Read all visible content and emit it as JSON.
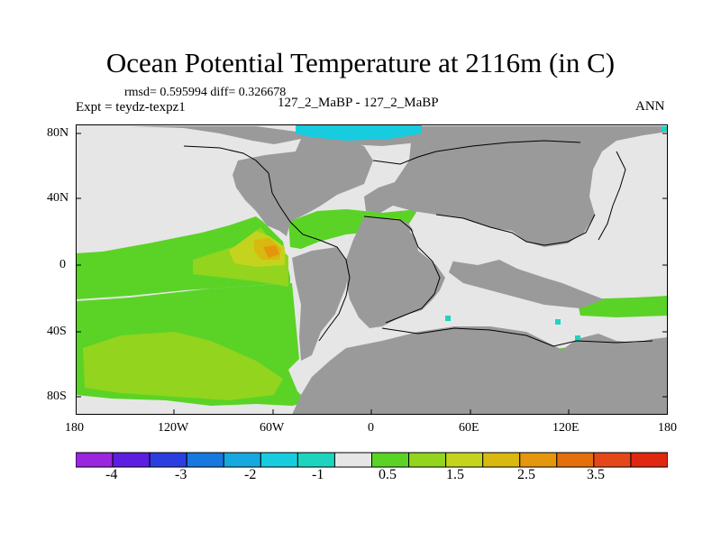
{
  "title": "Ocean Potential Temperature at 2116m (in C)",
  "stats": {
    "rmsd_line": "rmsd= 0.595994 diff= 0.326678",
    "expt_line": "Expt = teydz-texpz1",
    "run_line": "127_2_MaBP - 127_2_MaBP",
    "period": "ANN"
  },
  "axes": {
    "y_ticks": [
      "80N",
      "40N",
      "0",
      "40S",
      "80S"
    ],
    "x_ticks": [
      "180",
      "120W",
      "60W",
      "0",
      "60E",
      "120E",
      "180"
    ]
  },
  "legend": {
    "labels": [
      "-4",
      "-3",
      "-2",
      "-1",
      "0.5",
      "1.5",
      "2.5",
      "3.5"
    ],
    "colors": [
      "#9a26e0",
      "#5e1ee0",
      "#2b3fe0",
      "#1778e0",
      "#17a8e0",
      "#18cce0",
      "#1dd5bf",
      "#e6e6e6",
      "#5ad326",
      "#92d41e",
      "#c4d41e",
      "#d9b80f",
      "#e4960c",
      "#e46f0c",
      "#e4481a",
      "#e02810"
    ]
  },
  "colors": {
    "land": "#9a9a9a",
    "zero": "#e6e6e6",
    "green": "#5ad326",
    "yellowgreen": "#92d41e",
    "olive": "#c4d41e",
    "gold": "#d9b80f",
    "orange": "#e4960c",
    "cyan": "#18cce0",
    "teal": "#1dd5bf"
  }
}
